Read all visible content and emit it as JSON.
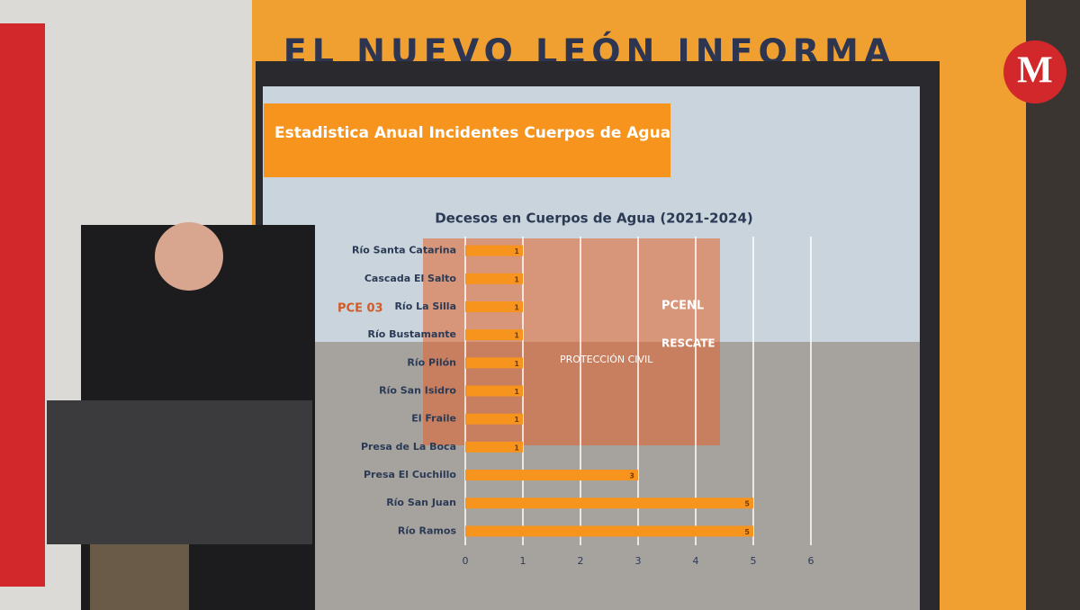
{
  "banner": "EL NUEVO LEÓN INFORMA",
  "logo": "M",
  "slide_title": "Estadistica Anual Incidentes Cuerpos de Agua",
  "photo_texts": [
    "PCE 03",
    "PCENL",
    "RESCATE",
    "PROTECCIÓN CIVIL"
  ],
  "chart_data": {
    "type": "hbar",
    "title": "Decesos en Cuerpos de Agua (2021-2024)",
    "categories": [
      "Río Santa Catarina",
      "Cascada El Salto",
      "Río La Silla",
      "Río Bustamante",
      "Río Pilón",
      "Río San Isidro",
      "El Fraile",
      "Presa de La Boca",
      "Presa El Cuchillo",
      "Río San Juan",
      "Río Ramos"
    ],
    "values": [
      1,
      1,
      1,
      1,
      1,
      1,
      1,
      1,
      3,
      5,
      5
    ],
    "color": "#f7941d",
    "xlim": [
      0,
      6
    ],
    "xticks": [
      0,
      1,
      2,
      3,
      4,
      5,
      6
    ],
    "grid": true
  }
}
